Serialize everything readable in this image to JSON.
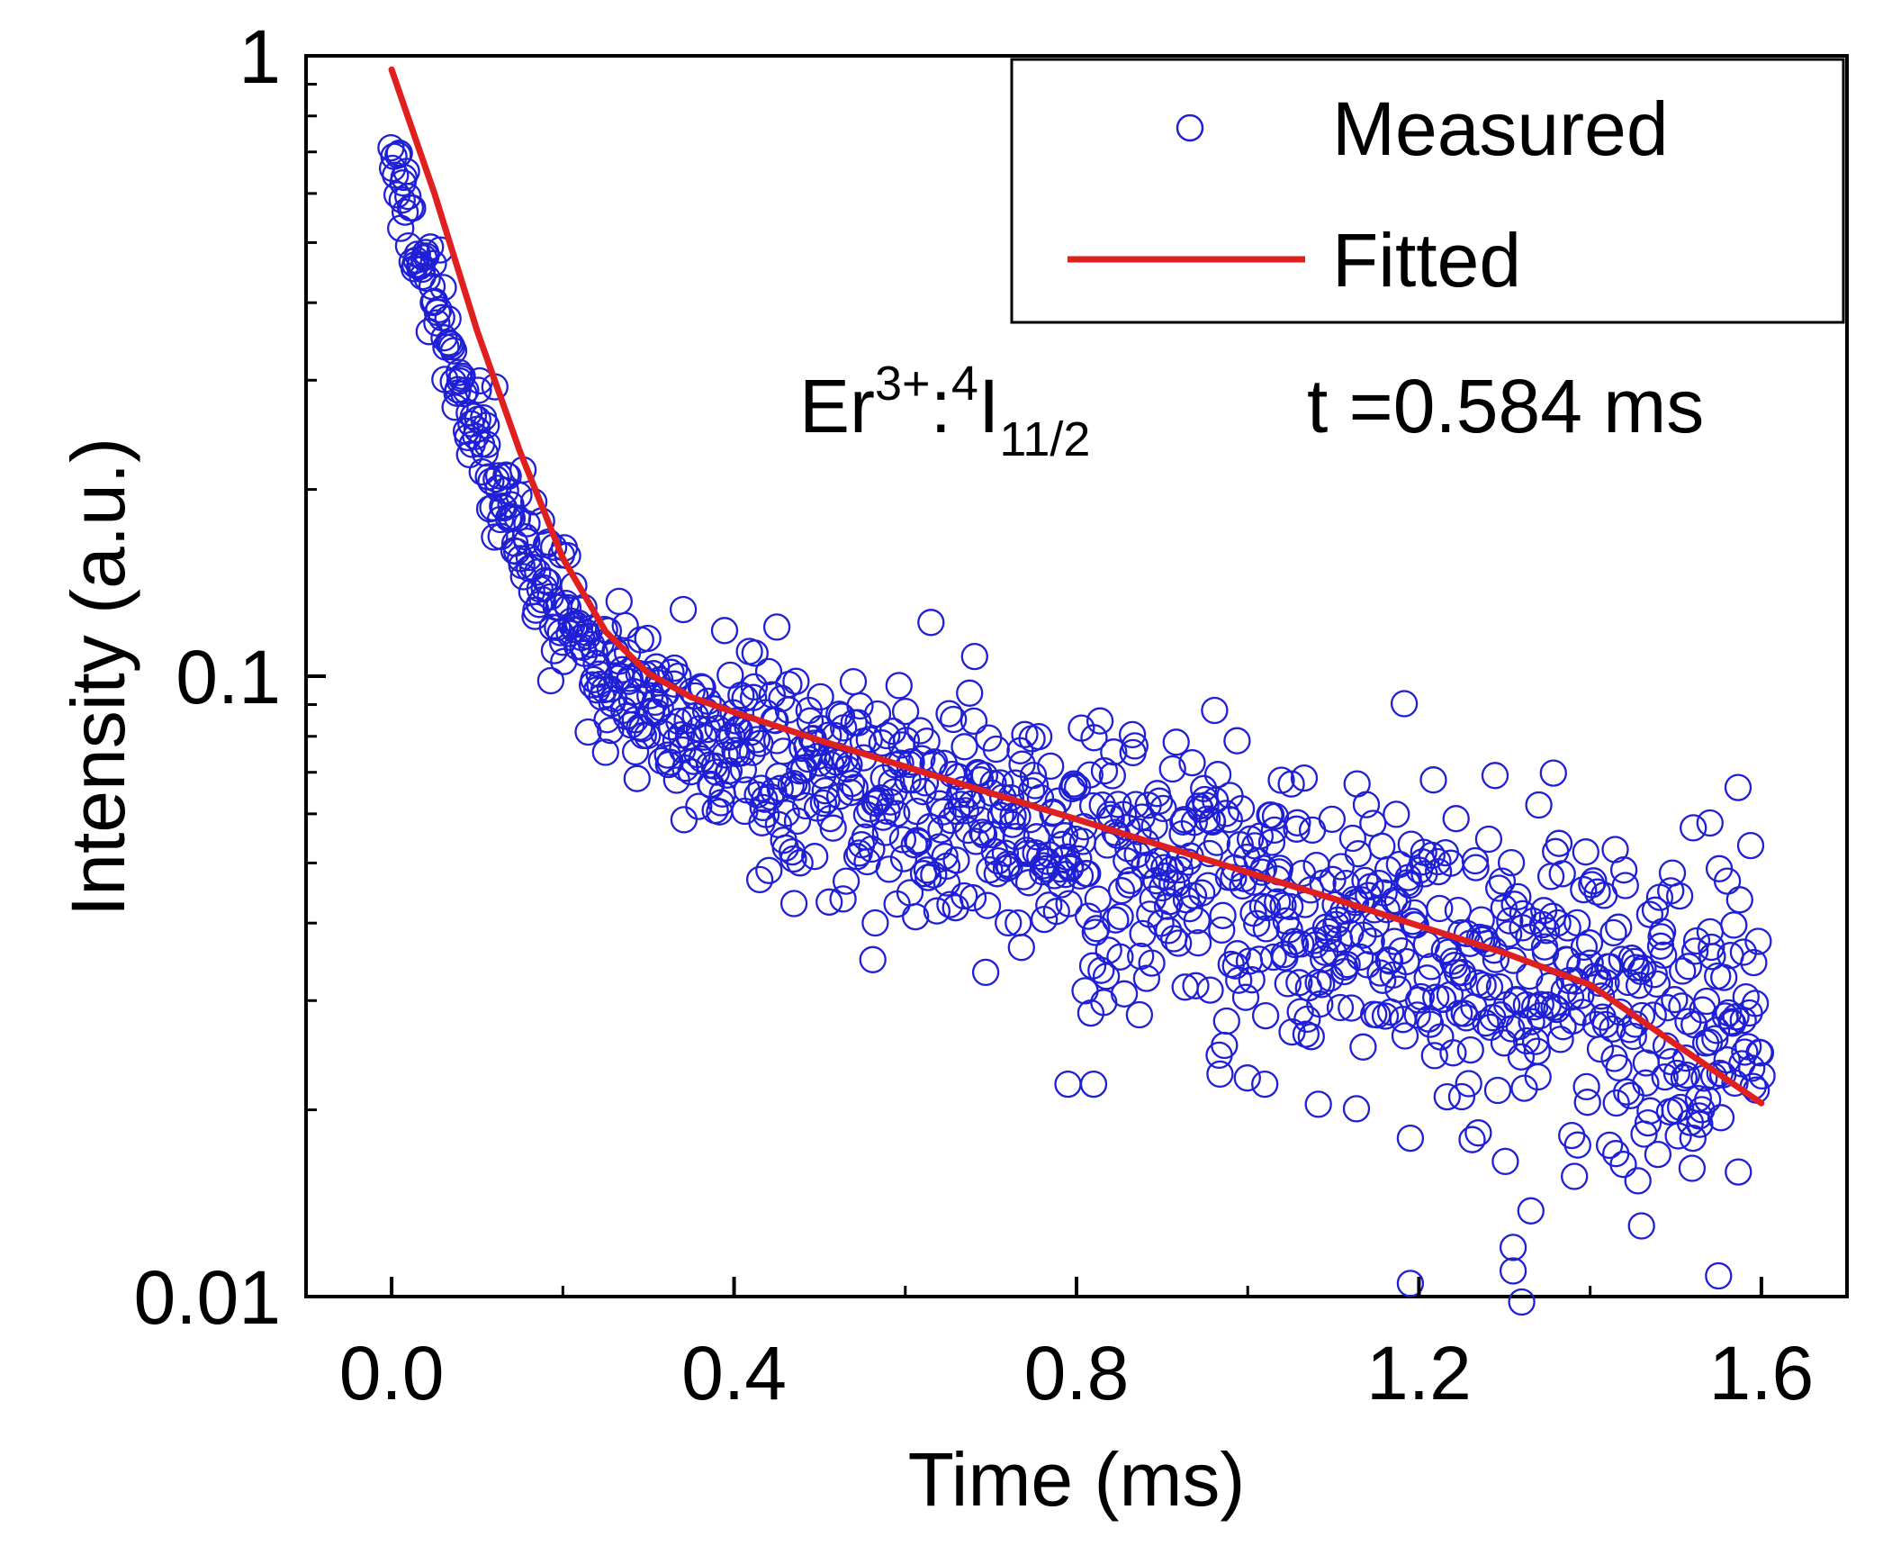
{
  "chart_data": {
    "type": "scatter",
    "title": "",
    "xlabel": "Time (ms)",
    "ylabel": "Intensity (a.u.)",
    "xlim": [
      -0.1,
      1.7
    ],
    "ylim": [
      0.01,
      1
    ],
    "yscale": "log",
    "grid": false,
    "x_ticks": [
      0.0,
      0.4,
      0.8,
      1.2,
      1.6
    ],
    "x_tick_labels": [
      "0.0",
      "0.4",
      "0.8",
      "1.2",
      "1.6"
    ],
    "y_ticks": [
      1,
      0.1,
      0.01
    ],
    "y_tick_labels": [
      "1",
      "0.1",
      "0.01"
    ],
    "legend": {
      "placement": "top-right",
      "entries": [
        {
          "label": "Measured",
          "marker": "open-circle",
          "color": "#1f1fd6"
        },
        {
          "label": "Fitted",
          "marker": "line",
          "color": "#e0201f"
        }
      ]
    },
    "annotation": {
      "species": "Er",
      "charge": "3+",
      "level_pre": "4",
      "level_letter": "I",
      "level_sub": "11/2",
      "lifetime_text": "t =0.584 ms"
    },
    "series": [
      {
        "name": "Measured",
        "kind": "scatter",
        "color": "#1f1fd6",
        "x_start": 0.0,
        "x_end": 1.6,
        "n_points": 1100,
        "model": {
          "a1": 0.6,
          "tau1_ms": 0.07,
          "a2": 0.11,
          "tau2_ms": 1.08
        },
        "noise_sigma_log10": [
          0.035,
          0.12
        ],
        "outliers": [
          {
            "x": 0.43,
            "y": 0.047
          },
          {
            "x": 0.45,
            "y": 0.12
          },
          {
            "x": 0.47,
            "y": 0.043
          },
          {
            "x": 0.79,
            "y": 0.022
          },
          {
            "x": 0.82,
            "y": 0.022
          },
          {
            "x": 1.02,
            "y": 0.022
          },
          {
            "x": 1.19,
            "y": 0.018
          },
          {
            "x": 1.19,
            "y": 0.0105
          },
          {
            "x": 1.25,
            "y": 0.021
          },
          {
            "x": 1.31,
            "y": 0.012
          },
          {
            "x": 1.31,
            "y": 0.011
          },
          {
            "x": 1.32,
            "y": 0.0098
          },
          {
            "x": 1.34,
            "y": 0.062
          },
          {
            "x": 1.43,
            "y": 0.017
          },
          {
            "x": 1.46,
            "y": 0.013
          },
          {
            "x": 1.52,
            "y": 0.018
          },
          {
            "x": 1.54,
            "y": 0.058
          },
          {
            "x": 1.55,
            "y": 0.0108
          }
        ]
      },
      {
        "name": "Fitted",
        "kind": "line",
        "color": "#e0201f",
        "x": [
          0.0,
          0.02,
          0.05,
          0.1,
          0.15,
          0.2,
          0.25,
          0.3,
          0.35,
          0.4,
          0.5,
          0.6,
          0.7,
          0.8,
          0.9,
          1.0,
          1.1,
          1.2,
          1.3,
          1.4,
          1.5,
          1.6
        ],
        "y": [
          0.95,
          0.79,
          0.6,
          0.36,
          0.23,
          0.155,
          0.118,
          0.101,
          0.0925,
          0.0875,
          0.0788,
          0.0715,
          0.0648,
          0.0588,
          0.0533,
          0.0483,
          0.0438,
          0.0396,
          0.0358,
          0.0318,
          0.0255,
          0.0205
        ]
      }
    ]
  }
}
